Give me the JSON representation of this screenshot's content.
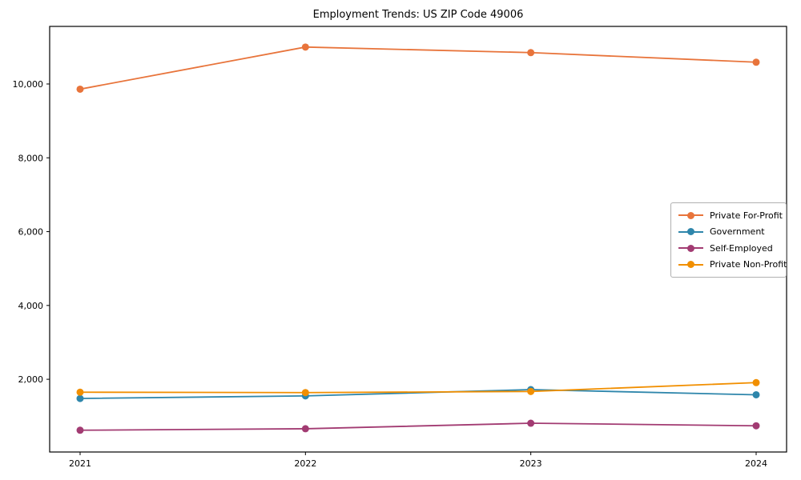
{
  "chart_data": {
    "type": "line",
    "title": "Employment Trends: US ZIP Code 49006",
    "xlabel": "",
    "ylabel": "",
    "x": [
      "2021",
      "2022",
      "2023",
      "2024"
    ],
    "series": [
      {
        "name": "Private For-Profit",
        "color": "#E8743B",
        "values": [
          9860,
          11000,
          10850,
          10590
        ]
      },
      {
        "name": "Government",
        "color": "#2E86AB",
        "values": [
          1480,
          1550,
          1720,
          1580
        ]
      },
      {
        "name": "Self-Employed",
        "color": "#A23B72",
        "values": [
          620,
          660,
          810,
          740
        ]
      },
      {
        "name": "Private Non-Profit",
        "color": "#F18F01",
        "values": [
          1650,
          1640,
          1670,
          1910
        ]
      }
    ],
    "yticks": {
      "values": [
        2000,
        4000,
        6000,
        8000,
        10000
      ],
      "labels": [
        "2,000",
        "4,000",
        "6,000",
        "8,000",
        "10,000"
      ]
    },
    "ylim": [
      30,
      11560
    ],
    "grid": false,
    "legend_position": "center right",
    "axis_color": "#000000",
    "background_color": "#ffffff",
    "marker": "circle"
  }
}
